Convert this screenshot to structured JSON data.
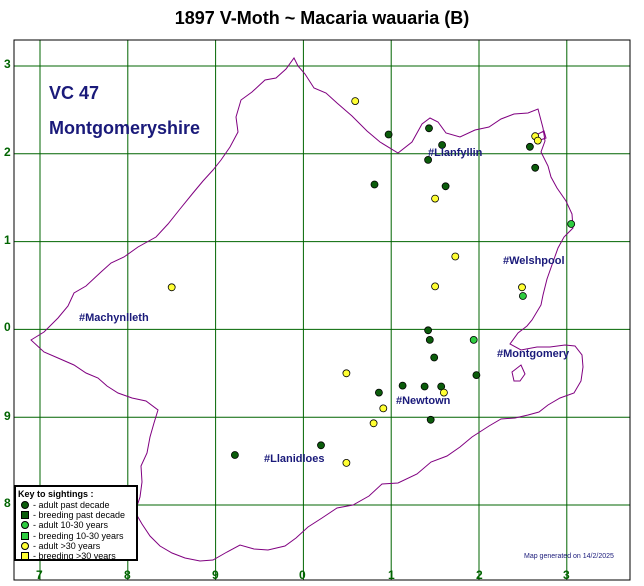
{
  "title": "1897 V-Moth ~ Macaria wauaria (B)",
  "vice_county": {
    "number": "VC 47",
    "name": "Montgomeryshire"
  },
  "axis": {
    "x_labels": [
      "7",
      "8",
      "9",
      "0",
      "1",
      "2",
      "3"
    ],
    "y_labels": [
      "3",
      "2",
      "1",
      "0",
      "9",
      "9",
      "8"
    ]
  },
  "colors": {
    "grid": "#006400",
    "boundary": "#800080",
    "adult_past_decade": "#0b5c0b",
    "breeding_past_decade": "#0b5c0b",
    "adult_10_30": "#2ecc40",
    "breeding_10_30": "#2ecc40",
    "adult_over_30": "#ffff33",
    "breeding_over_30": "#ffff33",
    "text_blue": "#1a1a7a"
  },
  "towns": [
    {
      "name": "#Llanfyllin"
    },
    {
      "name": "#Welshpool"
    },
    {
      "name": "#Machynlleth"
    },
    {
      "name": "#Montgomery"
    },
    {
      "name": "#Newtown"
    },
    {
      "name": "#Llanidloes"
    }
  ],
  "key": {
    "title": "Key to sightings :",
    "items": [
      {
        "label": "- adult past decade",
        "shape": "circle",
        "category": "adult_past_decade"
      },
      {
        "label": "- breeding past decade",
        "shape": "square",
        "category": "breeding_past_decade"
      },
      {
        "label": "- adult 10-30 years",
        "shape": "circle",
        "category": "adult_10_30"
      },
      {
        "label": "- breeding 10-30 years",
        "shape": "square",
        "category": "breeding_10_30"
      },
      {
        "label": "- adult >30 years",
        "shape": "circle",
        "category": "adult_over_30"
      },
      {
        "label": "- breeding >30 years",
        "shape": "square",
        "category": "breeding_over_30"
      }
    ]
  },
  "sightings": [
    {
      "category": "adult_past_decade",
      "x": 0.97,
      "y": 2.22
    },
    {
      "category": "adult_past_decade",
      "x": 1.43,
      "y": 2.29
    },
    {
      "category": "adult_past_decade",
      "x": 1.58,
      "y": 2.1
    },
    {
      "category": "adult_past_decade",
      "x": 1.42,
      "y": 1.93
    },
    {
      "category": "adult_past_decade",
      "x": 0.81,
      "y": 1.65
    },
    {
      "category": "adult_past_decade",
      "x": 1.62,
      "y": 1.63
    },
    {
      "category": "adult_past_decade",
      "x": 2.58,
      "y": 2.08
    },
    {
      "category": "adult_past_decade",
      "x": 2.64,
      "y": 1.84
    },
    {
      "category": "adult_past_decade",
      "x": 1.42,
      "y": -0.01
    },
    {
      "category": "adult_past_decade",
      "x": 1.44,
      "y": -0.12
    },
    {
      "category": "adult_past_decade",
      "x": 1.49,
      "y": -0.32
    },
    {
      "category": "adult_past_decade",
      "x": 1.13,
      "y": -0.64
    },
    {
      "category": "adult_past_decade",
      "x": 1.38,
      "y": -0.65
    },
    {
      "category": "adult_past_decade",
      "x": 0.86,
      "y": -0.72
    },
    {
      "category": "adult_past_decade",
      "x": 1.97,
      "y": -0.52
    },
    {
      "category": "adult_past_decade",
      "x": 1.57,
      "y": -0.65
    },
    {
      "category": "adult_past_decade",
      "x": 1.45,
      "y": -1.03
    },
    {
      "category": "adult_past_decade",
      "x": 0.2,
      "y": -1.32
    },
    {
      "category": "adult_past_decade",
      "x": -0.78,
      "y": -1.43
    },
    {
      "category": "adult_10_30",
      "x": 3.05,
      "y": 1.2
    },
    {
      "category": "adult_10_30",
      "x": 1.94,
      "y": -0.12
    },
    {
      "category": "adult_10_30",
      "x": 2.5,
      "y": 0.38
    },
    {
      "category": "adult_over_30",
      "x": 0.59,
      "y": 2.6
    },
    {
      "category": "adult_over_30",
      "x": 2.64,
      "y": 2.2
    },
    {
      "category": "adult_over_30",
      "x": 2.67,
      "y": 2.15
    },
    {
      "category": "adult_over_30",
      "x": 1.5,
      "y": 1.49
    },
    {
      "category": "adult_over_30",
      "x": 1.73,
      "y": 0.83
    },
    {
      "category": "adult_over_30",
      "x": 1.5,
      "y": 0.49
    },
    {
      "category": "adult_over_30",
      "x": 2.49,
      "y": 0.48
    },
    {
      "category": "adult_over_30",
      "x": -1.5,
      "y": 0.48
    },
    {
      "category": "adult_over_30",
      "x": 0.49,
      "y": -0.5
    },
    {
      "category": "adult_over_30",
      "x": 1.6,
      "y": -0.72
    },
    {
      "category": "adult_over_30",
      "x": 0.91,
      "y": -0.9
    },
    {
      "category": "adult_over_30",
      "x": 0.8,
      "y": -1.07
    },
    {
      "category": "adult_over_30",
      "x": 0.49,
      "y": -1.52
    }
  ],
  "generated": "Map generated on 14/2/2025"
}
